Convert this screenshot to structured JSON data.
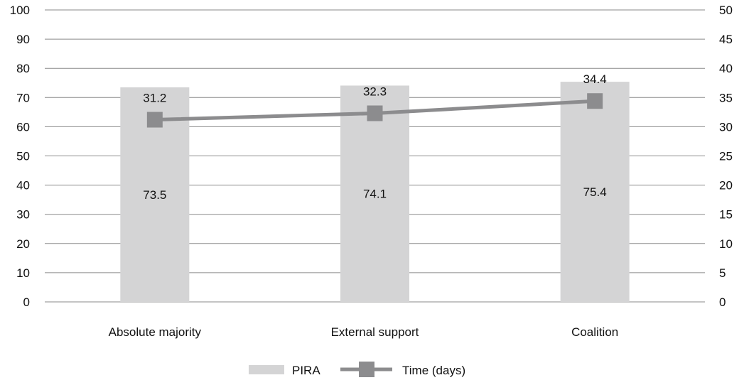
{
  "chart_data": {
    "type": "bar",
    "categories": [
      "Absolute majority",
      "External support",
      "Coalition"
    ],
    "series": [
      {
        "name": "PIRA",
        "type": "bar",
        "axis": "left",
        "values": [
          73.5,
          74.1,
          75.4
        ],
        "color": "#d4d4d5"
      },
      {
        "name": "Time (days)",
        "type": "line",
        "axis": "right",
        "values": [
          31.2,
          32.3,
          34.4
        ],
        "color": "#8c8c8e"
      }
    ],
    "y_left": {
      "min": 0,
      "max": 100,
      "step": 10,
      "ticks": [
        "0",
        "10",
        "20",
        "30",
        "40",
        "50",
        "60",
        "70",
        "80",
        "90",
        "100"
      ]
    },
    "y_right": {
      "min": 0,
      "max": 50,
      "step": 5,
      "ticks": [
        "0",
        "5",
        "10",
        "15",
        "20",
        "25",
        "30",
        "35",
        "40",
        "45",
        "50"
      ]
    },
    "grid": true,
    "legend_position": "bottom-center",
    "title": "",
    "xlabel": "",
    "ylabel": ""
  },
  "bar_labels": [
    "73.5",
    "74.1",
    "75.4"
  ],
  "line_labels": [
    "31.2",
    "32.3",
    "34.4"
  ],
  "legend": {
    "items": [
      "PIRA",
      "Time (days)"
    ]
  },
  "colors": {
    "grid": "#8a8a8a",
    "bar": "#d4d4d5",
    "line": "#8c8c8e"
  }
}
